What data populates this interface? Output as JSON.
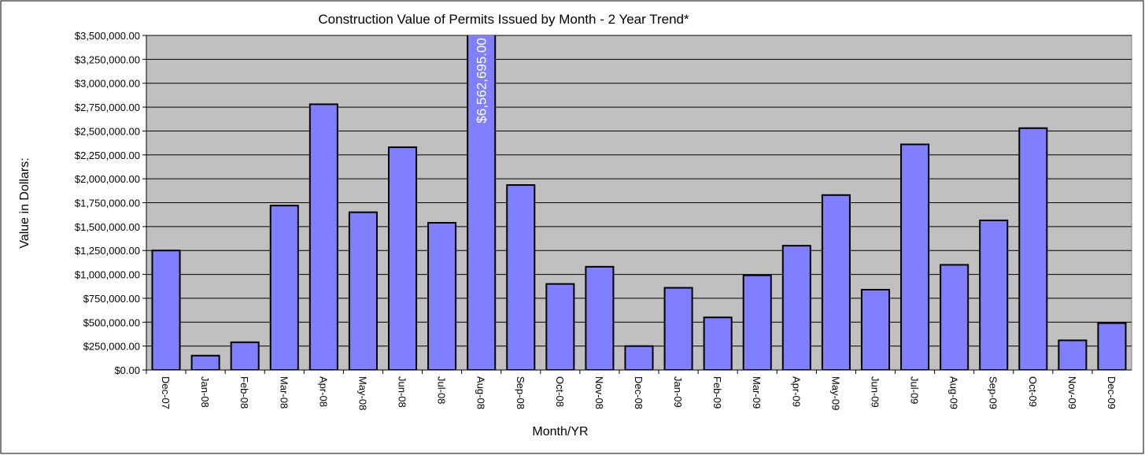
{
  "chart_data": {
    "type": "bar",
    "title": "Construction Value of Permits Issued by Month - 2 Year Trend*",
    "x_label": "Month/YR",
    "y_label": "Value in Dollars:",
    "categories": [
      "Dec-07",
      "Jan-08",
      "Feb-08",
      "Mar-08",
      "Apr-08",
      "May-08",
      "Jun-08",
      "Jul-08",
      "Aug-08",
      "Sep-08",
      "Oct-08",
      "Nov-08",
      "Dec-08",
      "Jan-09",
      "Feb-09",
      "Mar-09",
      "Apr-09",
      "May-09",
      "Jun-09",
      "Jul-09",
      "Aug-09",
      "Sep-09",
      "Oct-09",
      "Nov-09",
      "Dec-09"
    ],
    "values": [
      1250000,
      150000,
      290000,
      1720000,
      2780000,
      1650000,
      2330000,
      1540000,
      6562695,
      1935000,
      900000,
      1080000,
      250000,
      860000,
      550000,
      990000,
      1300000,
      1830000,
      840000,
      2360000,
      1100000,
      1565000,
      2530000,
      310000,
      490000
    ],
    "value_labels": [
      null,
      null,
      null,
      null,
      null,
      null,
      null,
      null,
      "$6,562,695.00",
      null,
      null,
      null,
      null,
      null,
      null,
      null,
      null,
      null,
      null,
      null,
      null,
      null,
      null,
      null,
      null
    ],
    "color": "#8080ff",
    "ylim": [
      0,
      3500000
    ],
    "yticks": [
      {
        "value": 0,
        "label": "$0.00"
      },
      {
        "value": 250000,
        "label": "$250,000.00"
      },
      {
        "value": 500000,
        "label": "$500,000.00"
      },
      {
        "value": 750000,
        "label": "$750,000.00"
      },
      {
        "value": 1000000,
        "label": "$1,000,000.00"
      },
      {
        "value": 1250000,
        "label": "$1,250,000.00"
      },
      {
        "value": 1500000,
        "label": "$1,500,000.00"
      },
      {
        "value": 1750000,
        "label": "$1,750,000.00"
      },
      {
        "value": 2000000,
        "label": "$2,000,000.00"
      },
      {
        "value": 2250000,
        "label": "$2,250,000.00"
      },
      {
        "value": 2500000,
        "label": "$2,500,000.00"
      },
      {
        "value": 2750000,
        "label": "$2,750,000.00"
      },
      {
        "value": 3000000,
        "label": "$3,000,000.00"
      },
      {
        "value": 3250000,
        "label": "$3,250,000.00"
      },
      {
        "value": 3500000,
        "label": "$3,500,000.00"
      }
    ],
    "grid": true
  }
}
